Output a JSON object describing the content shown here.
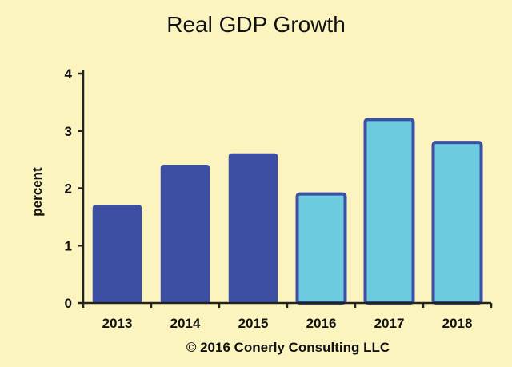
{
  "chart_data": {
    "type": "bar",
    "title": "Real GDP Growth",
    "xlabel": "",
    "ylabel": "percent",
    "categories": [
      "2013",
      "2014",
      "2015",
      "2016",
      "2017",
      "2018"
    ],
    "values": [
      1.7,
      2.4,
      2.6,
      1.9,
      3.2,
      2.8
    ],
    "ylim": [
      0,
      4
    ],
    "yticks": [
      "0",
      "1",
      "2",
      "3",
      "4"
    ],
    "grid": false,
    "colors": {
      "background": "#FBF4BE",
      "actual_fill": "#3C4FA3",
      "forecast_fill": "#6CCBDE",
      "forecast_stroke": "#3C4FA3",
      "axis": "#222222"
    },
    "series_style": [
      "actual",
      "actual",
      "actual",
      "forecast",
      "forecast",
      "forecast"
    ],
    "footer": "© 2016 Conerly Consulting LLC"
  }
}
